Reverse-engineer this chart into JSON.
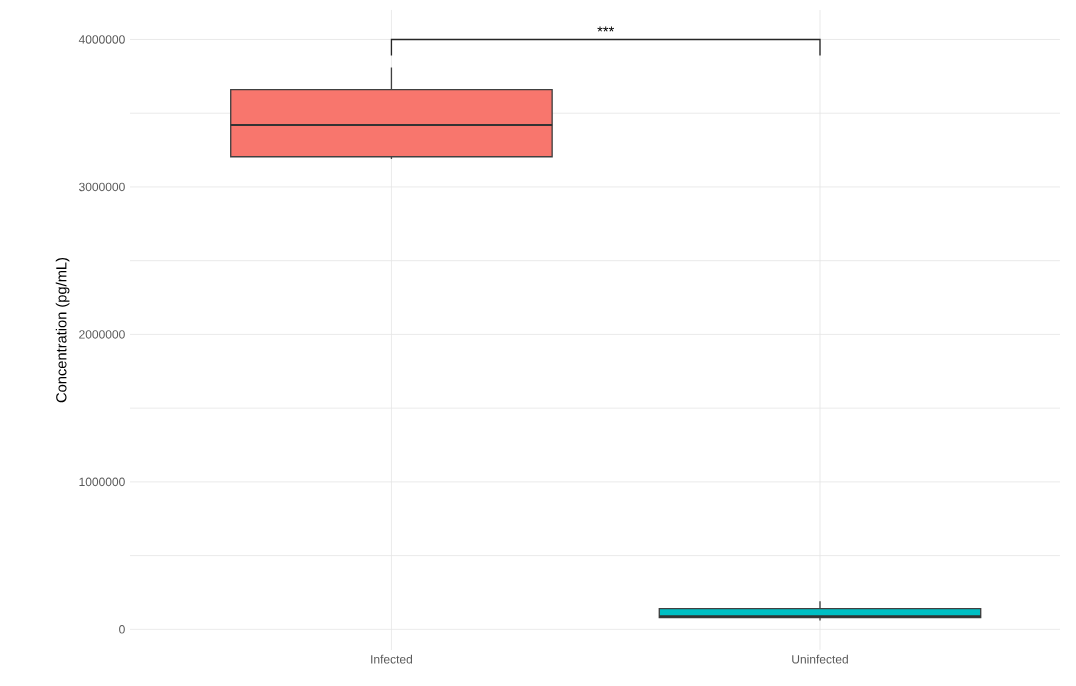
{
  "chart_data": {
    "type": "box",
    "ylabel": "Concentration (pg/mL)",
    "categories": [
      "Infected",
      "Uninfected"
    ],
    "boxes": [
      {
        "low": 3190000,
        "q1": 3205000,
        "median": 3420000,
        "q3": 3660000,
        "high": 3810000
      },
      {
        "low": 60000,
        "q1": 80000,
        "median": 88000,
        "q3": 140000,
        "high": 190000
      }
    ],
    "colors": [
      "#f8766d",
      "#00bfc4"
    ],
    "ylim": [
      -140000,
      4200000
    ],
    "yticks": [
      0,
      {
        "value": 500000,
        "label": null
      },
      1000000,
      {
        "value": 1500000,
        "label": null
      },
      2000000,
      {
        "value": 2500000,
        "label": null
      },
      3000000,
      {
        "value": 3500000,
        "label": null
      },
      4000000
    ],
    "grid": true,
    "annotations": [
      "***"
    ]
  }
}
